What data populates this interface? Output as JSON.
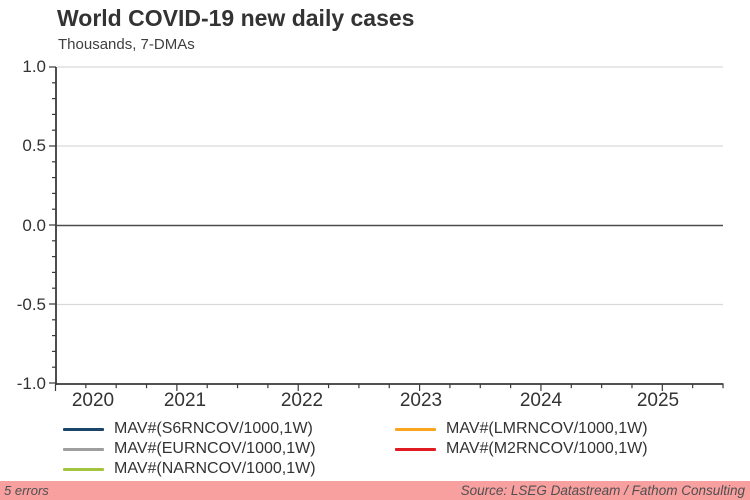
{
  "chart": {
    "title": "World COVID-19 new daily cases",
    "subtitle": "Thousands, 7-DMAs"
  },
  "chart_data": {
    "type": "line",
    "title": "World COVID-19 new daily cases",
    "subtitle": "Thousands, 7-DMAs",
    "x_axis": {
      "tick_labels": [
        "2020",
        "2021",
        "2022",
        "2023",
        "2024",
        "2025"
      ],
      "range": [
        2020,
        2025.5
      ],
      "minor_ticks": "quarterly"
    },
    "y_axis": {
      "tick_labels": [
        "1.0",
        "0.5",
        "0.0",
        "-0.5",
        "-1.0"
      ],
      "ylim": [
        -1.0,
        1.0
      ],
      "major_step": 0.5,
      "minor_step": 0.1
    },
    "grid": {
      "horizontal": true,
      "vertical": false,
      "zero_line": true
    },
    "legend_position": "bottom",
    "series": [
      {
        "name": "MAV#(S6RNCOV/1000,1W)",
        "color": "#1c4468",
        "values": []
      },
      {
        "name": "MAV#(EURNCOV/1000,1W)",
        "color": "#9e9e9e",
        "values": []
      },
      {
        "name": "MAV#(NARNCOV/1000,1W)",
        "color": "#a3c43d",
        "values": []
      },
      {
        "name": "MAV#(LMRNCOV/1000,1W)",
        "color": "#f9a51d",
        "values": []
      },
      {
        "name": "MAV#(M2RNCOV/1000,1W)",
        "color": "#e11b22",
        "values": []
      }
    ]
  },
  "legend": {
    "columns": [
      {
        "items": [
          {
            "label": "MAV#(S6RNCOV/1000,1W)",
            "color": "#1c4468"
          },
          {
            "label": "MAV#(EURNCOV/1000,1W)",
            "color": "#9e9e9e"
          },
          {
            "label": "MAV#(NARNCOV/1000,1W)",
            "color": "#a3c43d"
          }
        ]
      },
      {
        "items": [
          {
            "label": "MAV#(LMRNCOV/1000,1W)",
            "color": "#f9a51d"
          },
          {
            "label": "MAV#(M2RNCOV/1000,1W)",
            "color": "#e11b22"
          }
        ]
      }
    ]
  },
  "status_bar": {
    "errors_text": "5 errors",
    "source_text": "Source: LSEG Datastream / Fathom Consulting",
    "background_color": "#f8a0a0"
  },
  "colors": {
    "grid_light": "#d9d9d9",
    "zero_line": "#4d4d4d",
    "axis": "#3a3a3a",
    "text": "#333333"
  }
}
